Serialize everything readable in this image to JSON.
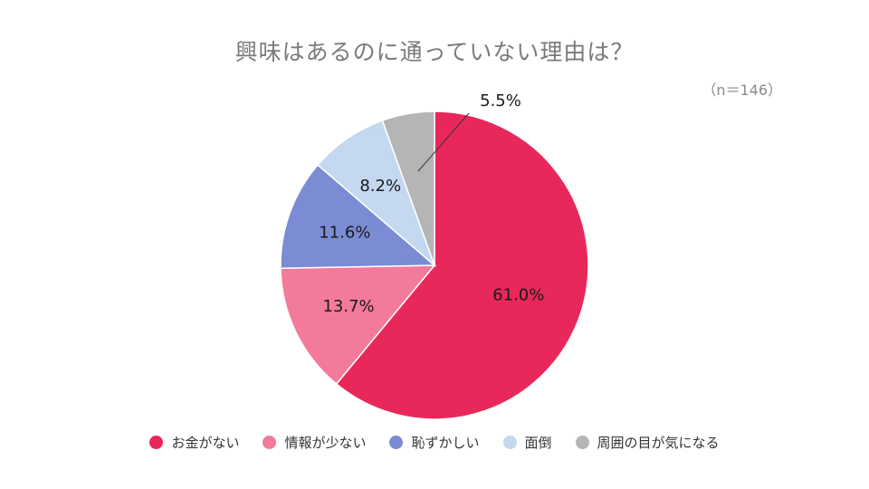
{
  "chart_data": {
    "type": "pie",
    "title": "興味はあるのに通っていない理由は？",
    "note": "（n＝146）",
    "categories": [
      "お金がない",
      "情報が少ない",
      "恥ずかしい",
      "面倒",
      "周囲の目が気になる"
    ],
    "values": [
      61.0,
      13.7,
      11.6,
      8.2,
      5.5
    ],
    "labels": [
      "61.0%",
      "13.7%",
      "11.6%",
      "8.2%",
      "5.5%"
    ],
    "colors": [
      "#e8285a",
      "#f47a9b",
      "#7b8bd4",
      "#c4d8f0",
      "#b5b5b5"
    ],
    "start": "12 o'clock",
    "direction": "clockwise",
    "legend_position": "bottom"
  }
}
